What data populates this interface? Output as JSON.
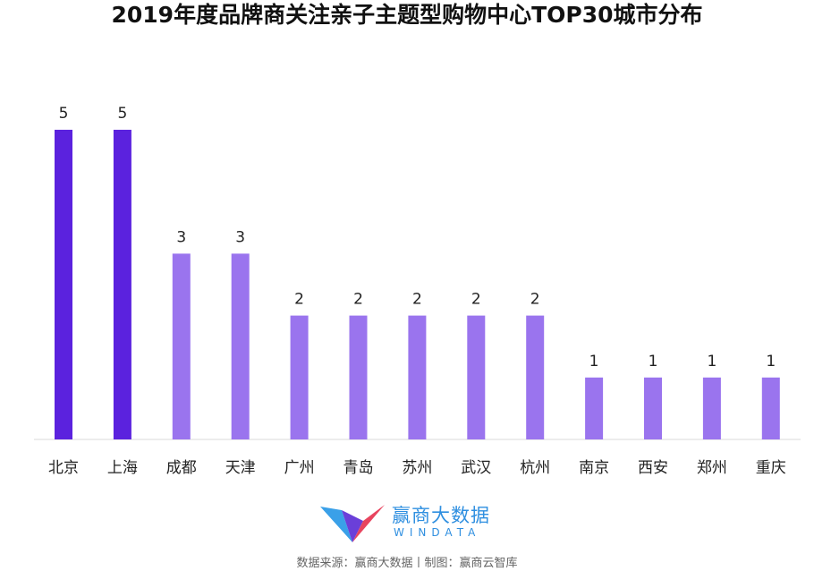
{
  "chart_data": {
    "type": "bar",
    "title": "2019年度品牌商关注亲子主题型购物中心TOP30城市分布",
    "categories": [
      "北京",
      "上海",
      "成都",
      "天津",
      "广州",
      "青岛",
      "苏州",
      "武汉",
      "杭州",
      "南京",
      "西安",
      "郑州",
      "重庆"
    ],
    "values": [
      5,
      5,
      3,
      3,
      2,
      2,
      2,
      2,
      2,
      1,
      1,
      1,
      1
    ],
    "xlabel": "",
    "ylabel": "",
    "ylim": [
      0,
      5
    ],
    "grid": false,
    "data_labels": true,
    "colors": {
      "highlight": "#5b22de",
      "default": "#9a74ee",
      "axis": "#d9d9d9",
      "label": "#222222"
    },
    "highlight_categories": [
      "北京",
      "上海"
    ]
  },
  "logo": {
    "name_cn": "赢商大数据",
    "name_en": "WINDATA"
  },
  "footer": {
    "source": "数据来源：赢商大数据丨制图：赢商云智库"
  }
}
